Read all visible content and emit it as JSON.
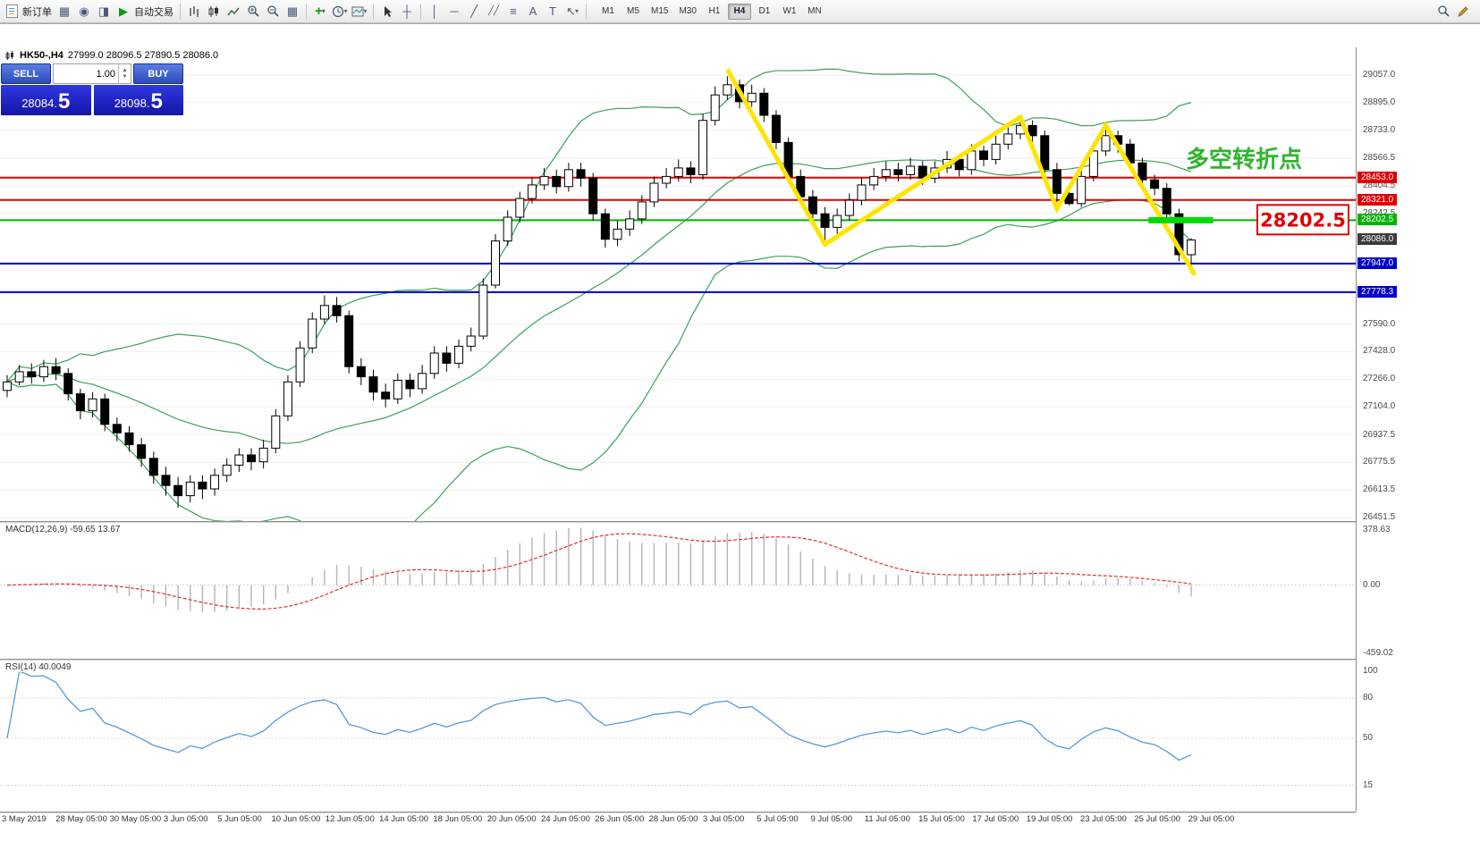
{
  "toolbar": {
    "new_order_label": "新订单",
    "autotrading_label": "自动交易",
    "timeframes": [
      "M1",
      "M5",
      "M15",
      "M30",
      "H1",
      "H4",
      "D1",
      "W1",
      "MN"
    ],
    "active_timeframe": "H4"
  },
  "icons": {
    "charts": "▦",
    "market_watch": "◉",
    "navigator": "◨",
    "play": "▶",
    "tile": "▦",
    "indicators_plus": "+",
    "caret": "▾",
    "crosshair": "┼",
    "vline": "│",
    "hline": "─",
    "trendline": "╱",
    "channel": "╱╱",
    "fibonacci": "≡",
    "text_tool": "A",
    "label_tool": "T",
    "arrows_tool": "↖"
  },
  "chart_header": {
    "symbol": "HK50-,H4",
    "ohlc": "27999.0 28096.5 27890.5 28086.0"
  },
  "one_click": {
    "sell_label": "SELL",
    "buy_label": "BUY",
    "volume": "1.00",
    "sell_price": "28084.5",
    "buy_price": "28098.5"
  },
  "chart_data": {
    "type": "candlestick",
    "title": "HK50- H4",
    "price_range": {
      "max": 29220,
      "min": 26420
    },
    "y_axis_labels": [
      "29057.0",
      "28895.0",
      "28733.0",
      "28566.5",
      "28404.5",
      "28242.5",
      "27590.0",
      "27428.0",
      "27266.0",
      "27104.0",
      "26937.5",
      "26775.5",
      "26613.5",
      "26451.5"
    ],
    "x_labels": [
      "3 May 2019",
      "28 May 05:00",
      "30 May 05:00",
      "3 Jun 05:00",
      "5 Jun 05:00",
      "10 Jun 05:00",
      "12 Jun 05:00",
      "14 Jun 05:00",
      "18 Jun 05:00",
      "20 Jun 05:00",
      "24 Jun 05:00",
      "26 Jun 05:00",
      "28 Jun 05:00",
      "3 Jul 05:00",
      "5 Jul 05:00",
      "9 Jul 05:00",
      "11 Jul 05:00",
      "15 Jul 05:00",
      "17 Jul 05:00",
      "19 Jul 05:00",
      "23 Jul 05:00",
      "25 Jul 05:00",
      "29 Jul 05:00"
    ],
    "hlines": [
      {
        "price": 28453.0,
        "label": "28453.0",
        "color": "#e00000",
        "width": 2
      },
      {
        "price": 28321.0,
        "label": "28321.0",
        "color": "#e00000",
        "width": 2
      },
      {
        "price": 28202.5,
        "label": "28202.5",
        "color": "#00b400",
        "width": 2
      },
      {
        "price": 27947.0,
        "label": "27947.0",
        "color": "#0000cc",
        "width": 2
      },
      {
        "price": 27778.3,
        "label": "27778.3",
        "color": "#0000cc",
        "width": 2
      }
    ],
    "current_price": {
      "value": 28086.0,
      "label": "28086.0",
      "tag_color": "#3c3c3c"
    },
    "bollinger": {
      "period": 20,
      "deviation": 2,
      "color": "#3aa05a"
    },
    "annotations": {
      "zigzag": {
        "color": "#ffe400",
        "points": [
          {
            "i": 59,
            "p": 29090
          },
          {
            "i": 67,
            "p": 28060
          },
          {
            "i": 83,
            "p": 28810
          },
          {
            "i": 86,
            "p": 28270
          },
          {
            "i": 90,
            "p": 28760
          },
          {
            "i": 97.3,
            "p": 27880
          }
        ]
      },
      "highlight_segment": {
        "color": "#00dc00",
        "price": 28202.5,
        "from_i": 93.5,
        "to_i": 98.8
      },
      "callout": {
        "text": "28202.5",
        "color": "#e00000"
      },
      "note": {
        "text": "多空转折点",
        "color": "#2db52d"
      }
    },
    "macd": {
      "label": "MACD(12,26,9)",
      "value_main": "-59.65",
      "value_signal": "13.67",
      "scale_labels": [
        "378.63",
        "0.00",
        "-459.02"
      ],
      "range": {
        "max": 378.63,
        "min": -459.02
      },
      "histogram_color": "#b4b4b4",
      "signal_color": "#e03030"
    },
    "rsi": {
      "label": "RSI(14)",
      "value": "40.0049",
      "scale_labels": [
        "100",
        "80",
        "50",
        "15"
      ],
      "levels": [
        80,
        50,
        15
      ],
      "color": "#5599dd"
    },
    "candles": [
      [
        27200,
        27290,
        27160,
        27250
      ],
      [
        27250,
        27350,
        27230,
        27310
      ],
      [
        27310,
        27360,
        27240,
        27280
      ],
      [
        27280,
        27380,
        27250,
        27340
      ],
      [
        27340,
        27390,
        27260,
        27300
      ],
      [
        27300,
        27330,
        27140,
        27180
      ],
      [
        27180,
        27210,
        27030,
        27080
      ],
      [
        27080,
        27190,
        27040,
        27150
      ],
      [
        27150,
        27180,
        26960,
        27000
      ],
      [
        27000,
        27040,
        26900,
        26950
      ],
      [
        26950,
        26990,
        26840,
        26880
      ],
      [
        26880,
        26920,
        26750,
        26800
      ],
      [
        26800,
        26840,
        26650,
        26700
      ],
      [
        26700,
        26750,
        26580,
        26640
      ],
      [
        26640,
        26690,
        26510,
        26580
      ],
      [
        26580,
        26700,
        26540,
        26660
      ],
      [
        26660,
        26700,
        26560,
        26620
      ],
      [
        26620,
        26740,
        26580,
        26700
      ],
      [
        26700,
        26800,
        26660,
        26760
      ],
      [
        26760,
        26860,
        26720,
        26820
      ],
      [
        26820,
        26860,
        26730,
        26780
      ],
      [
        26780,
        26910,
        26740,
        26860
      ],
      [
        26860,
        27090,
        26830,
        27050
      ],
      [
        27050,
        27290,
        27020,
        27250
      ],
      [
        27250,
        27490,
        27220,
        27450
      ],
      [
        27450,
        27660,
        27420,
        27620
      ],
      [
        27620,
        27760,
        27590,
        27700
      ],
      [
        27700,
        27750,
        27600,
        27640
      ],
      [
        27640,
        27670,
        27300,
        27340
      ],
      [
        27340,
        27390,
        27230,
        27280
      ],
      [
        27280,
        27320,
        27140,
        27190
      ],
      [
        27190,
        27240,
        27100,
        27150
      ],
      [
        27150,
        27300,
        27120,
        27260
      ],
      [
        27260,
        27300,
        27160,
        27210
      ],
      [
        27210,
        27350,
        27180,
        27300
      ],
      [
        27300,
        27460,
        27270,
        27420
      ],
      [
        27420,
        27460,
        27310,
        27360
      ],
      [
        27360,
        27500,
        27330,
        27460
      ],
      [
        27460,
        27570,
        27430,
        27520
      ],
      [
        27520,
        27860,
        27500,
        27820
      ],
      [
        27820,
        28120,
        27800,
        28080
      ],
      [
        28080,
        28260,
        28050,
        28220
      ],
      [
        28220,
        28370,
        28190,
        28330
      ],
      [
        28330,
        28450,
        28300,
        28410
      ],
      [
        28410,
        28510,
        28380,
        28460
      ],
      [
        28460,
        28500,
        28360,
        28400
      ],
      [
        28400,
        28540,
        28370,
        28500
      ],
      [
        28500,
        28540,
        28400,
        28450
      ],
      [
        28450,
        28480,
        28200,
        28240
      ],
      [
        28240,
        28270,
        28040,
        28090
      ],
      [
        28090,
        28200,
        28050,
        28150
      ],
      [
        28150,
        28260,
        28110,
        28210
      ],
      [
        28210,
        28350,
        28180,
        28310
      ],
      [
        28310,
        28460,
        28280,
        28420
      ],
      [
        28420,
        28510,
        28390,
        28460
      ],
      [
        28460,
        28560,
        28430,
        28510
      ],
      [
        28510,
        28550,
        28420,
        28470
      ],
      [
        28470,
        28830,
        28440,
        28790
      ],
      [
        28790,
        28990,
        28760,
        28940
      ],
      [
        28940,
        29050,
        28910,
        29000
      ],
      [
        29000,
        29030,
        28860,
        28900
      ],
      [
        28900,
        29000,
        28870,
        28950
      ],
      [
        28950,
        28980,
        28780,
        28820
      ],
      [
        28820,
        28850,
        28620,
        28660
      ],
      [
        28660,
        28690,
        28420,
        28460
      ],
      [
        28460,
        28500,
        28300,
        28340
      ],
      [
        28340,
        28380,
        28190,
        28240
      ],
      [
        28240,
        28280,
        28080,
        28160
      ],
      [
        28160,
        28270,
        28120,
        28230
      ],
      [
        28230,
        28360,
        28200,
        28320
      ],
      [
        28320,
        28450,
        28290,
        28410
      ],
      [
        28410,
        28510,
        28380,
        28460
      ],
      [
        28460,
        28550,
        28430,
        28500
      ],
      [
        28500,
        28540,
        28430,
        28470
      ],
      [
        28470,
        28570,
        28440,
        28520
      ],
      [
        28520,
        28550,
        28410,
        28450
      ],
      [
        28450,
        28550,
        28420,
        28510
      ],
      [
        28510,
        28610,
        28480,
        28560
      ],
      [
        28560,
        28590,
        28460,
        28500
      ],
      [
        28500,
        28650,
        28470,
        28610
      ],
      [
        28610,
        28640,
        28520,
        28560
      ],
      [
        28560,
        28700,
        28530,
        28650
      ],
      [
        28650,
        28760,
        28620,
        28710
      ],
      [
        28710,
        28800,
        28680,
        28760
      ],
      [
        28760,
        28790,
        28650,
        28700
      ],
      [
        28700,
        28730,
        28460,
        28500
      ],
      [
        28500,
        28540,
        28310,
        28360
      ],
      [
        28360,
        28400,
        28290,
        28300
      ],
      [
        28300,
        28500,
        28280,
        28460
      ],
      [
        28460,
        28650,
        28430,
        28610
      ],
      [
        28610,
        28740,
        28580,
        28700
      ],
      [
        28700,
        28730,
        28600,
        28650
      ],
      [
        28650,
        28680,
        28500,
        28540
      ],
      [
        28540,
        28570,
        28400,
        28440
      ],
      [
        28440,
        28470,
        28350,
        28390
      ],
      [
        28390,
        28420,
        28200,
        28240
      ],
      [
        28240,
        28270,
        27960,
        27999
      ],
      [
        27999,
        28096.5,
        27890.5,
        28086
      ]
    ]
  }
}
